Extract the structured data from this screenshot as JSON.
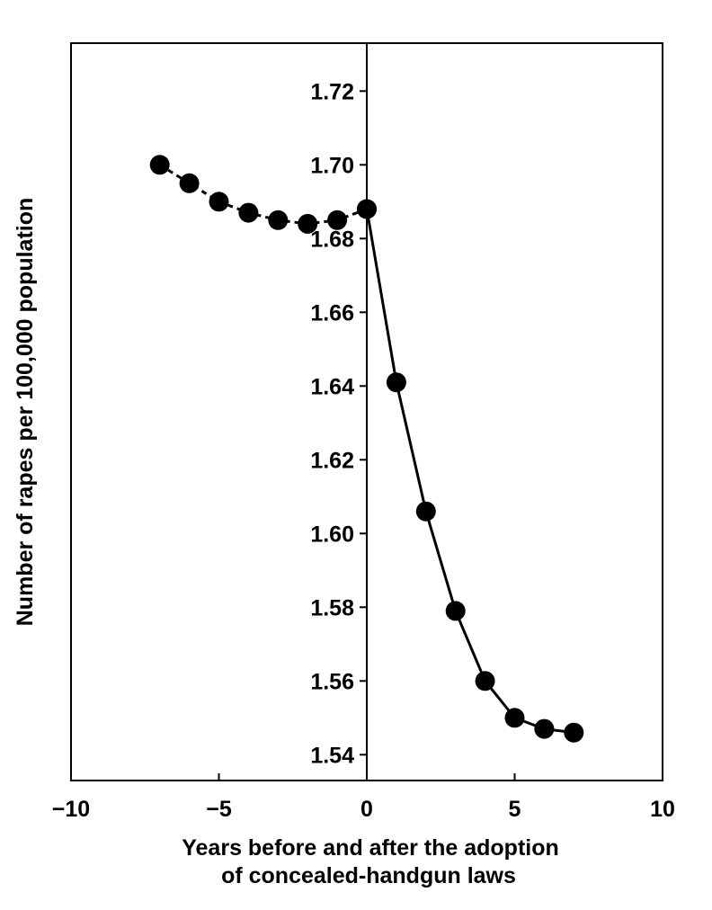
{
  "chart_data": {
    "type": "line",
    "title": "",
    "xlabel": [
      "Years before and after the adoption",
      "of concealed-handgun laws"
    ],
    "ylabel": "Number of rapes per 100,000 population",
    "xlim": [
      -10,
      10
    ],
    "ylim": [
      1.533,
      1.733
    ],
    "x_ticks": [
      -10,
      -5,
      0,
      5,
      10
    ],
    "x_tick_labels": [
      "−10",
      "−5",
      "0",
      "5",
      "10"
    ],
    "y_ticks": [
      1.54,
      1.56,
      1.58,
      1.6,
      1.62,
      1.64,
      1.66,
      1.68,
      1.7,
      1.72
    ],
    "y_tick_labels": [
      "1.54",
      "1.56",
      "1.58",
      "1.60",
      "1.62",
      "1.64",
      "1.66",
      "1.68",
      "1.70",
      "1.72"
    ],
    "y_axis_at_x": 0,
    "grid": false,
    "series": [
      {
        "x": [
          -7,
          -6,
          -5,
          -4,
          -3,
          -2,
          -1,
          0
        ],
        "y": [
          1.7,
          1.695,
          1.69,
          1.687,
          1.685,
          1.684,
          1.685,
          1.688
        ],
        "line_style": "dashed"
      },
      {
        "x": [
          0,
          1,
          2,
          3,
          4,
          5,
          6,
          7
        ],
        "y": [
          1.688,
          1.641,
          1.606,
          1.579,
          1.56,
          1.55,
          1.547,
          1.546
        ],
        "line_style": "solid"
      }
    ],
    "colors": {
      "line": "#000000",
      "marker": "#000000",
      "axis": "#000000"
    }
  }
}
